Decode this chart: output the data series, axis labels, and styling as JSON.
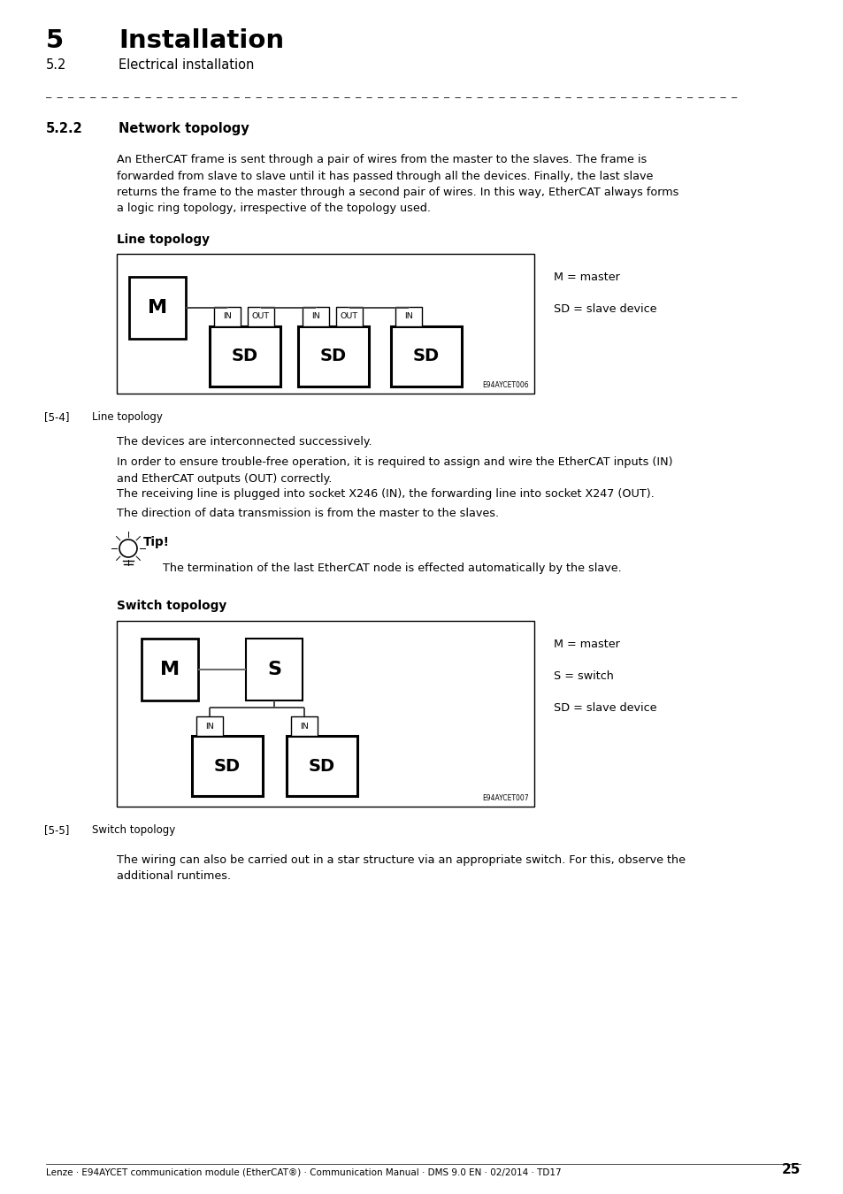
{
  "bg_color": "#ffffff",
  "page_width": 9.54,
  "page_height": 13.5,
  "dpi": 100,
  "header_chapter": "5",
  "header_title": "Installation",
  "header_sub": "5.2",
  "header_sub_title": "Electrical installation",
  "section_num": "5.2.2",
  "section_title": "Network topology",
  "para1": "An EtherCAT frame is sent through a pair of wires from the master to the slaves. The frame is\nforwarded from slave to slave until it has passed through all the devices. Finally, the last slave\nreturns the frame to the master through a second pair of wires. In this way, EtherCAT always forms\na logic ring topology, irrespective of the topology used.",
  "line_topo_label": "Line topology",
  "line_topo_fig_label": "[5-4]",
  "line_topo_fig_desc": "Line topology",
  "line_topo_legend1": "M = master",
  "line_topo_legend2": "SD = slave device",
  "line_topo_code": "E94AYCET006",
  "para2": "The devices are interconnected successively.",
  "para3": "In order to ensure trouble-free operation, it is required to assign and wire the EtherCAT inputs (IN)\nand EtherCAT outputs (OUT) correctly.",
  "para4": "The receiving line is plugged into socket X246 (IN), the forwarding line into socket X247 (OUT).",
  "para5": "The direction of data transmission is from the master to the slaves.",
  "tip_label": "Tip!",
  "tip_text": "The termination of the last EtherCAT node is effected automatically by the slave.",
  "switch_topo_label": "Switch topology",
  "switch_topo_fig_label": "[5-5]",
  "switch_topo_fig_desc": "Switch topology",
  "switch_topo_legend1": "M = master",
  "switch_topo_legend2": "S = switch",
  "switch_topo_legend3": "SD = slave device",
  "switch_topo_code": "E94AYCET007",
  "para6": "The wiring can also be carried out in a star structure via an appropriate switch. For this, observe the\nadditional runtimes.",
  "footer_text": "Lenze · E94AYCET communication module (EtherCAT®) · Communication Manual · DMS 9.0 EN · 02/2014 · TD17",
  "footer_page": "25"
}
